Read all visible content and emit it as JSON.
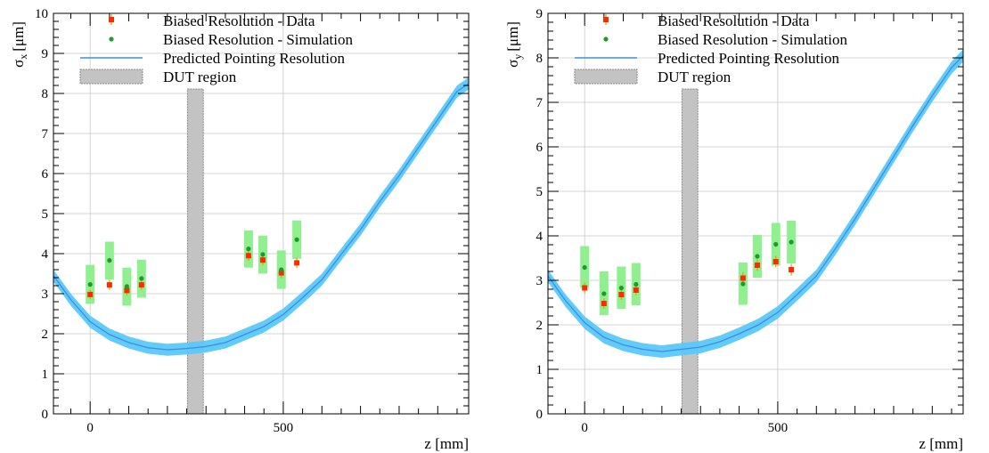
{
  "chart_data": [
    {
      "type": "scatter",
      "xlabel": "z [mm]",
      "ylabel": "σ",
      "ylabel_sub": "x",
      "ylabel_unit": "[μm]",
      "xlim": [
        -95,
        980
      ],
      "ylim": [
        0,
        10
      ],
      "xticks": [
        0,
        500
      ],
      "yticks": [
        0,
        1,
        2,
        3,
        4,
        5,
        6,
        7,
        8,
        9,
        10
      ],
      "grid": true,
      "legend_position": "top-center",
      "legend": {
        "data_label": "Biased Resolution - Data",
        "sim_label": "Biased Resolution - Simulation",
        "pred_label": "Predicted Pointing Resolution",
        "dut_label": "DUT region"
      },
      "dut_region": [
        252,
        293
      ],
      "series": [
        {
          "name": "Biased Resolution - Data",
          "x": [
            0,
            50,
            95,
            133,
            410,
            447,
            495,
            535
          ],
          "y": [
            2.98,
            3.22,
            3.08,
            3.22,
            3.95,
            3.84,
            3.52,
            3.77
          ],
          "yerr": [
            0.12,
            0.12,
            0.12,
            0.12,
            0.13,
            0.13,
            0.13,
            0.13
          ]
        },
        {
          "name": "Biased Resolution - Simulation",
          "x": [
            0,
            50,
            95,
            133,
            410,
            447,
            495,
            535
          ],
          "y": [
            3.23,
            3.83,
            3.18,
            3.38,
            4.12,
            3.98,
            3.6,
            4.35
          ],
          "band_low": [
            2.75,
            3.35,
            2.7,
            2.9,
            3.65,
            3.5,
            3.12,
            3.87
          ],
          "band_high": [
            3.72,
            4.3,
            3.65,
            3.85,
            4.58,
            4.45,
            4.08,
            4.83
          ]
        },
        {
          "name": "Predicted Pointing Resolution",
          "x": [
            -95,
            -50,
            0,
            50,
            100,
            150,
            200,
            250,
            300,
            350,
            400,
            450,
            500,
            550,
            600,
            650,
            700,
            750,
            800,
            850,
            900,
            950,
            980
          ],
          "y": [
            3.45,
            2.85,
            2.3,
            1.98,
            1.78,
            1.65,
            1.6,
            1.63,
            1.68,
            1.78,
            1.98,
            2.18,
            2.48,
            2.9,
            3.35,
            3.98,
            4.6,
            5.3,
            5.95,
            6.65,
            7.35,
            8.05,
            8.25
          ],
          "band_halfwidth": 0.15
        }
      ]
    },
    {
      "type": "scatter",
      "xlabel": "z [mm]",
      "ylabel": "σ",
      "ylabel_sub": "y",
      "ylabel_unit": "[μm]",
      "xlim": [
        -95,
        980
      ],
      "ylim": [
        0,
        9
      ],
      "xticks": [
        0,
        500
      ],
      "yticks": [
        0,
        1,
        2,
        3,
        4,
        5,
        6,
        7,
        8,
        9
      ],
      "grid": true,
      "legend_position": "top-center",
      "legend": {
        "data_label": "Biased Resolution - Data",
        "sim_label": "Biased Resolution - Simulation",
        "pred_label": "Predicted Pointing Resolution",
        "dut_label": "DUT region"
      },
      "dut_region": [
        252,
        293
      ],
      "series": [
        {
          "name": "Biased Resolution - Data",
          "x": [
            0,
            50,
            95,
            133,
            410,
            447,
            495,
            535
          ],
          "y": [
            2.83,
            2.48,
            2.68,
            2.78,
            3.05,
            3.34,
            3.42,
            3.24
          ],
          "yerr": [
            0.12,
            0.12,
            0.12,
            0.12,
            0.13,
            0.13,
            0.13,
            0.13
          ]
        },
        {
          "name": "Biased Resolution - Simulation",
          "x": [
            0,
            50,
            95,
            133,
            410,
            447,
            495,
            535
          ],
          "y": [
            3.29,
            2.7,
            2.83,
            2.91,
            2.92,
            3.54,
            3.81,
            3.86
          ],
          "band_low": [
            2.83,
            2.22,
            2.36,
            2.44,
            2.45,
            3.06,
            3.33,
            3.38
          ],
          "band_high": [
            3.77,
            3.2,
            3.31,
            3.39,
            3.4,
            4.02,
            4.29,
            4.34
          ]
        },
        {
          "name": "Predicted Pointing Resolution",
          "x": [
            -95,
            -50,
            0,
            50,
            100,
            150,
            200,
            250,
            300,
            350,
            400,
            450,
            500,
            550,
            600,
            650,
            700,
            750,
            800,
            850,
            900,
            950,
            980
          ],
          "y": [
            3.1,
            2.55,
            2.05,
            1.72,
            1.55,
            1.45,
            1.4,
            1.45,
            1.5,
            1.62,
            1.8,
            2.0,
            2.28,
            2.68,
            3.1,
            3.72,
            4.38,
            5.08,
            5.78,
            6.48,
            7.15,
            7.78,
            8.05
          ],
          "band_halfwidth": 0.14
        }
      ]
    }
  ]
}
